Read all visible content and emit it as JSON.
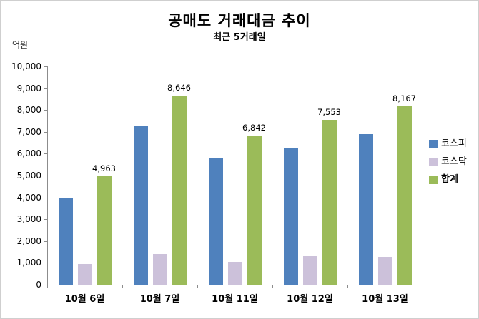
{
  "title": "공매도 거래대금 추이",
  "subtitle": "최근 5거래일",
  "y_unit_label": "억원",
  "chart_data": {
    "type": "bar",
    "categories": [
      "10월 6일",
      "10월 7일",
      "10월 11일",
      "10월 12일",
      "10월 13일"
    ],
    "series": [
      {
        "key": "kospi",
        "name": "코스피",
        "color": "#4F81BD",
        "values": [
          4000,
          7250,
          5800,
          6250,
          6900
        ],
        "data_labels": false,
        "label_bold": false
      },
      {
        "key": "kosdaq",
        "name": "코스닥",
        "color": "#CCC1DA",
        "values": [
          950,
          1400,
          1050,
          1300,
          1270
        ],
        "data_labels": false,
        "label_bold": false
      },
      {
        "key": "total",
        "name": "합계",
        "color": "#9BBB59",
        "values": [
          4963,
          8646,
          6842,
          7553,
          8167
        ],
        "data_labels": true,
        "label_bold": true
      }
    ],
    "ylim": [
      0,
      10000
    ],
    "ytick_step": 1000,
    "grid": false,
    "legend_position": "right"
  }
}
